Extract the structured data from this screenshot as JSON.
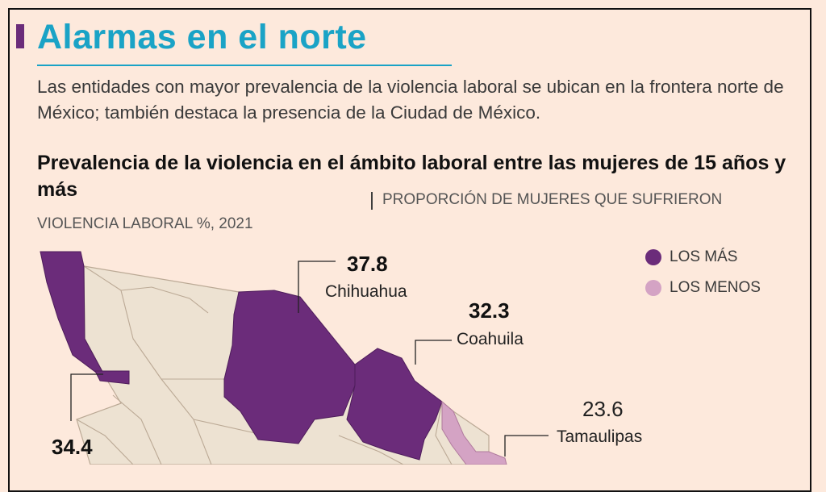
{
  "header": {
    "title": "Alarmas en el norte",
    "subtitle": "Las entidades con mayor prevalencia de la violencia laboral se ubican en la frontera norte de México; también destaca la presencia de la Ciudad de México."
  },
  "chart": {
    "title": "Prevalencia de la violencia en el ámbito laboral entre las mujeres de 15 años y más",
    "separator": "|",
    "units_line1": "PROPORCIÓN DE MUJERES QUE SUFRIERON",
    "units_line2": "VIOLENCIA LABORAL %, 2021"
  },
  "legend": [
    {
      "label": "LOS MÁS",
      "color": "#6b2c7a"
    },
    {
      "label": "LOS MENOS",
      "color": "#d4a3c4"
    }
  ],
  "colors": {
    "background": "#fde9dc",
    "title": "#1aa3c6",
    "most": "#6b2c7a",
    "least": "#d4a3c4",
    "other_states": "#ede2d2"
  },
  "chart_data": {
    "type": "choropleth-map",
    "region": "México",
    "year": 2021,
    "unit": "%",
    "states": [
      {
        "name": "Chihuahua",
        "value": 37.8,
        "group": "LOS MÁS"
      },
      {
        "name": "Coahuila",
        "value": 32.3,
        "group": "LOS MÁS"
      },
      {
        "name": "Tamaulipas",
        "value": 23.6,
        "group": "LOS MENOS"
      },
      {
        "name": "",
        "value": 34.4,
        "group": "LOS MÁS"
      }
    ]
  }
}
